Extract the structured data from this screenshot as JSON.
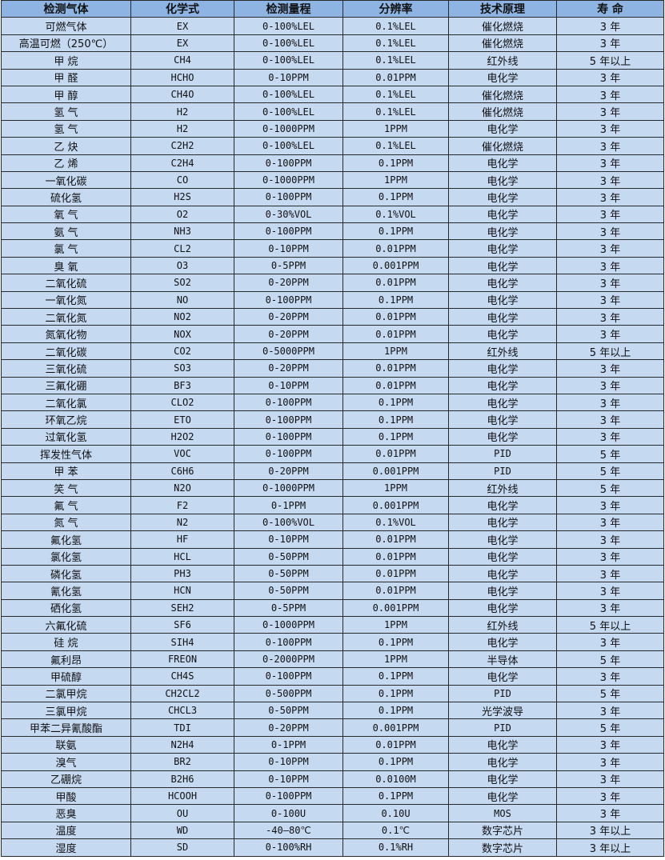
{
  "colors": {
    "header_bg": "#8db4e2",
    "row_bg": "#c5d9f1",
    "border": "#2a2a2a"
  },
  "table": {
    "headers": [
      "检测气体",
      "化学式",
      "检测量程",
      "分辨率",
      "技术原理",
      "寿 命"
    ],
    "rows": [
      [
        "可燃气体",
        "EX",
        "0-100%LEL",
        "0.1%LEL",
        "催化燃烧",
        "3 年"
      ],
      [
        "高温可燃（250℃）",
        "EX",
        "0-100%LEL",
        "0.1%LEL",
        "催化燃烧",
        "3 年"
      ],
      [
        "甲 烷",
        "CH4",
        "0-100%LEL",
        "0.1%LEL",
        "红外线",
        "5 年以上"
      ],
      [
        "甲 醛",
        "HCHO",
        "0-10PPM",
        "0.01PPM",
        "电化学",
        "3 年"
      ],
      [
        "甲 醇",
        "CH4O",
        "0-100%LEL",
        "0.1%LEL",
        "催化燃烧",
        "3 年"
      ],
      [
        "氢 气",
        "H2",
        "0-100%LEL",
        "0.1%LEL",
        "催化燃烧",
        "3 年"
      ],
      [
        "氢 气",
        "H2",
        "0-1000PPM",
        "1PPM",
        "电化学",
        "3 年"
      ],
      [
        "乙 炔",
        "C2H2",
        "0-100%LEL",
        "0.1%LEL",
        "催化燃烧",
        "3 年"
      ],
      [
        "乙 烯",
        "C2H4",
        "0-100PPM",
        "0.1PPM",
        "电化学",
        "3 年"
      ],
      [
        "一氧化碳",
        "CO",
        "0-1000PPM",
        "1PPM",
        "电化学",
        "3 年"
      ],
      [
        "硫化氢",
        "H2S",
        "0-100PPM",
        "0.1PPM",
        "电化学",
        "3 年"
      ],
      [
        "氧 气",
        "O2",
        "0-30%VOL",
        "0.1%VOL",
        "电化学",
        "3 年"
      ],
      [
        "氨 气",
        "NH3",
        "0-100PPM",
        "0.1PPM",
        "电化学",
        "3 年"
      ],
      [
        "氯 气",
        "CL2",
        "0-10PPM",
        "0.01PPM",
        "电化学",
        "3 年"
      ],
      [
        "臭 氧",
        "O3",
        "0-5PPM",
        "0.001PPM",
        "电化学",
        "3 年"
      ],
      [
        "二氧化硫",
        "SO2",
        "0-20PPM",
        "0.01PPM",
        "电化学",
        "3 年"
      ],
      [
        "一氧化氮",
        "NO",
        "0-100PPM",
        "0.1PPM",
        "电化学",
        "3 年"
      ],
      [
        "二氧化氮",
        "NO2",
        "0-20PPM",
        "0.01PPM",
        "电化学",
        "3 年"
      ],
      [
        "氮氧化物",
        "NOX",
        "0-20PPM",
        "0.01PPM",
        "电化学",
        "3 年"
      ],
      [
        "二氧化碳",
        "CO2",
        "0-5000PPM",
        "1PPM",
        "红外线",
        "5 年以上"
      ],
      [
        "三氧化硫",
        "SO3",
        "0-20PPM",
        "0.01PPM",
        "电化学",
        "3 年"
      ],
      [
        "三氟化硼",
        "BF3",
        "0-10PPM",
        "0.01PPM",
        "电化学",
        "3 年"
      ],
      [
        "二氧化氯",
        "CLO2",
        "0-100PPM",
        "0.1PPM",
        "电化学",
        "3 年"
      ],
      [
        "环氧乙烷",
        "ETO",
        "0-100PPM",
        "0.1PPM",
        "电化学",
        "3 年"
      ],
      [
        "过氧化氢",
        "H2O2",
        "0-100PPM",
        "0.1PPM",
        "电化学",
        "3 年"
      ],
      [
        "挥发性气体",
        "VOC",
        "0-100PPM",
        "0.01PPM",
        "PID",
        "5 年"
      ],
      [
        "甲 苯",
        "C6H6",
        "0-20PPM",
        "0.001PPM",
        "PID",
        "5 年"
      ],
      [
        "笑 气",
        "N2O",
        "0-1000PPM",
        "1PPM",
        "红外线",
        "5 年"
      ],
      [
        "氟 气",
        "F2",
        "0-1PPM",
        "0.001PPM",
        "电化学",
        "3 年"
      ],
      [
        "氮 气",
        "N2",
        "0-100%VOL",
        "0.1%VOL",
        "电化学",
        "3 年"
      ],
      [
        "氟化氢",
        "HF",
        "0-10PPM",
        "0.01PPM",
        "电化学",
        "3 年"
      ],
      [
        "氯化氢",
        "HCL",
        "0-50PPM",
        "0.01PPM",
        "电化学",
        "3 年"
      ],
      [
        "磷化氢",
        "PH3",
        "0-50PPM",
        "0.01PPM",
        "电化学",
        "3 年"
      ],
      [
        "氰化氢",
        "HCN",
        "0-50PPM",
        "0.01PPM",
        "电化学",
        "3 年"
      ],
      [
        "硒化氢",
        "SEH2",
        "0-5PPM",
        "0.001PPM",
        "电化学",
        "3 年"
      ],
      [
        "六氟化硫",
        "SF6",
        "0-1000PPM",
        "1PPM",
        "红外线",
        "5 年以上"
      ],
      [
        "硅 烷",
        "SIH4",
        "0-100PPM",
        "0.1PPM",
        "电化学",
        "3 年"
      ],
      [
        "氟利昂",
        "FREON",
        "0-2000PPM",
        "1PPM",
        "半导体",
        "5 年"
      ],
      [
        "甲硫醇",
        "CH4S",
        "0-100PPM",
        "0.1PPM",
        "电化学",
        "3 年"
      ],
      [
        "二氯甲烷",
        "CH2CL2",
        "0-500PPM",
        "0.1PPM",
        "PID",
        "5 年"
      ],
      [
        "三氯甲烷",
        "CHCL3",
        "0-50PPM",
        "0.1PPM",
        "光学波导",
        "3 年"
      ],
      [
        "甲苯二异氰酸酯",
        "TDI",
        "0-20PPM",
        "0.001PPM",
        "PID",
        "5 年"
      ],
      [
        "联氨",
        "N2H4",
        "0-1PPM",
        "0.01PPM",
        "电化学",
        "3 年"
      ],
      [
        "溴气",
        "BR2",
        "0-10PPM",
        "0.1PPM",
        "电化学",
        "3 年"
      ],
      [
        "乙硼烷",
        "B2H6",
        "0-10PPM",
        "0.0100M",
        "电化学",
        "3 年"
      ],
      [
        "甲酸",
        "HCOOH",
        "0-100PPM",
        "0.1PPM",
        "电化学",
        "3 年"
      ],
      [
        "恶臭",
        "OU",
        "0-100U",
        "0.10U",
        "MOS",
        "3 年"
      ],
      [
        "温度",
        "WD",
        "-40—80℃",
        "0.1℃",
        "数字芯片",
        "3 年以上"
      ],
      [
        "湿度",
        "SD",
        "0-100%RH",
        "0.1%RH",
        "数字芯片",
        "3 年以上"
      ]
    ]
  }
}
